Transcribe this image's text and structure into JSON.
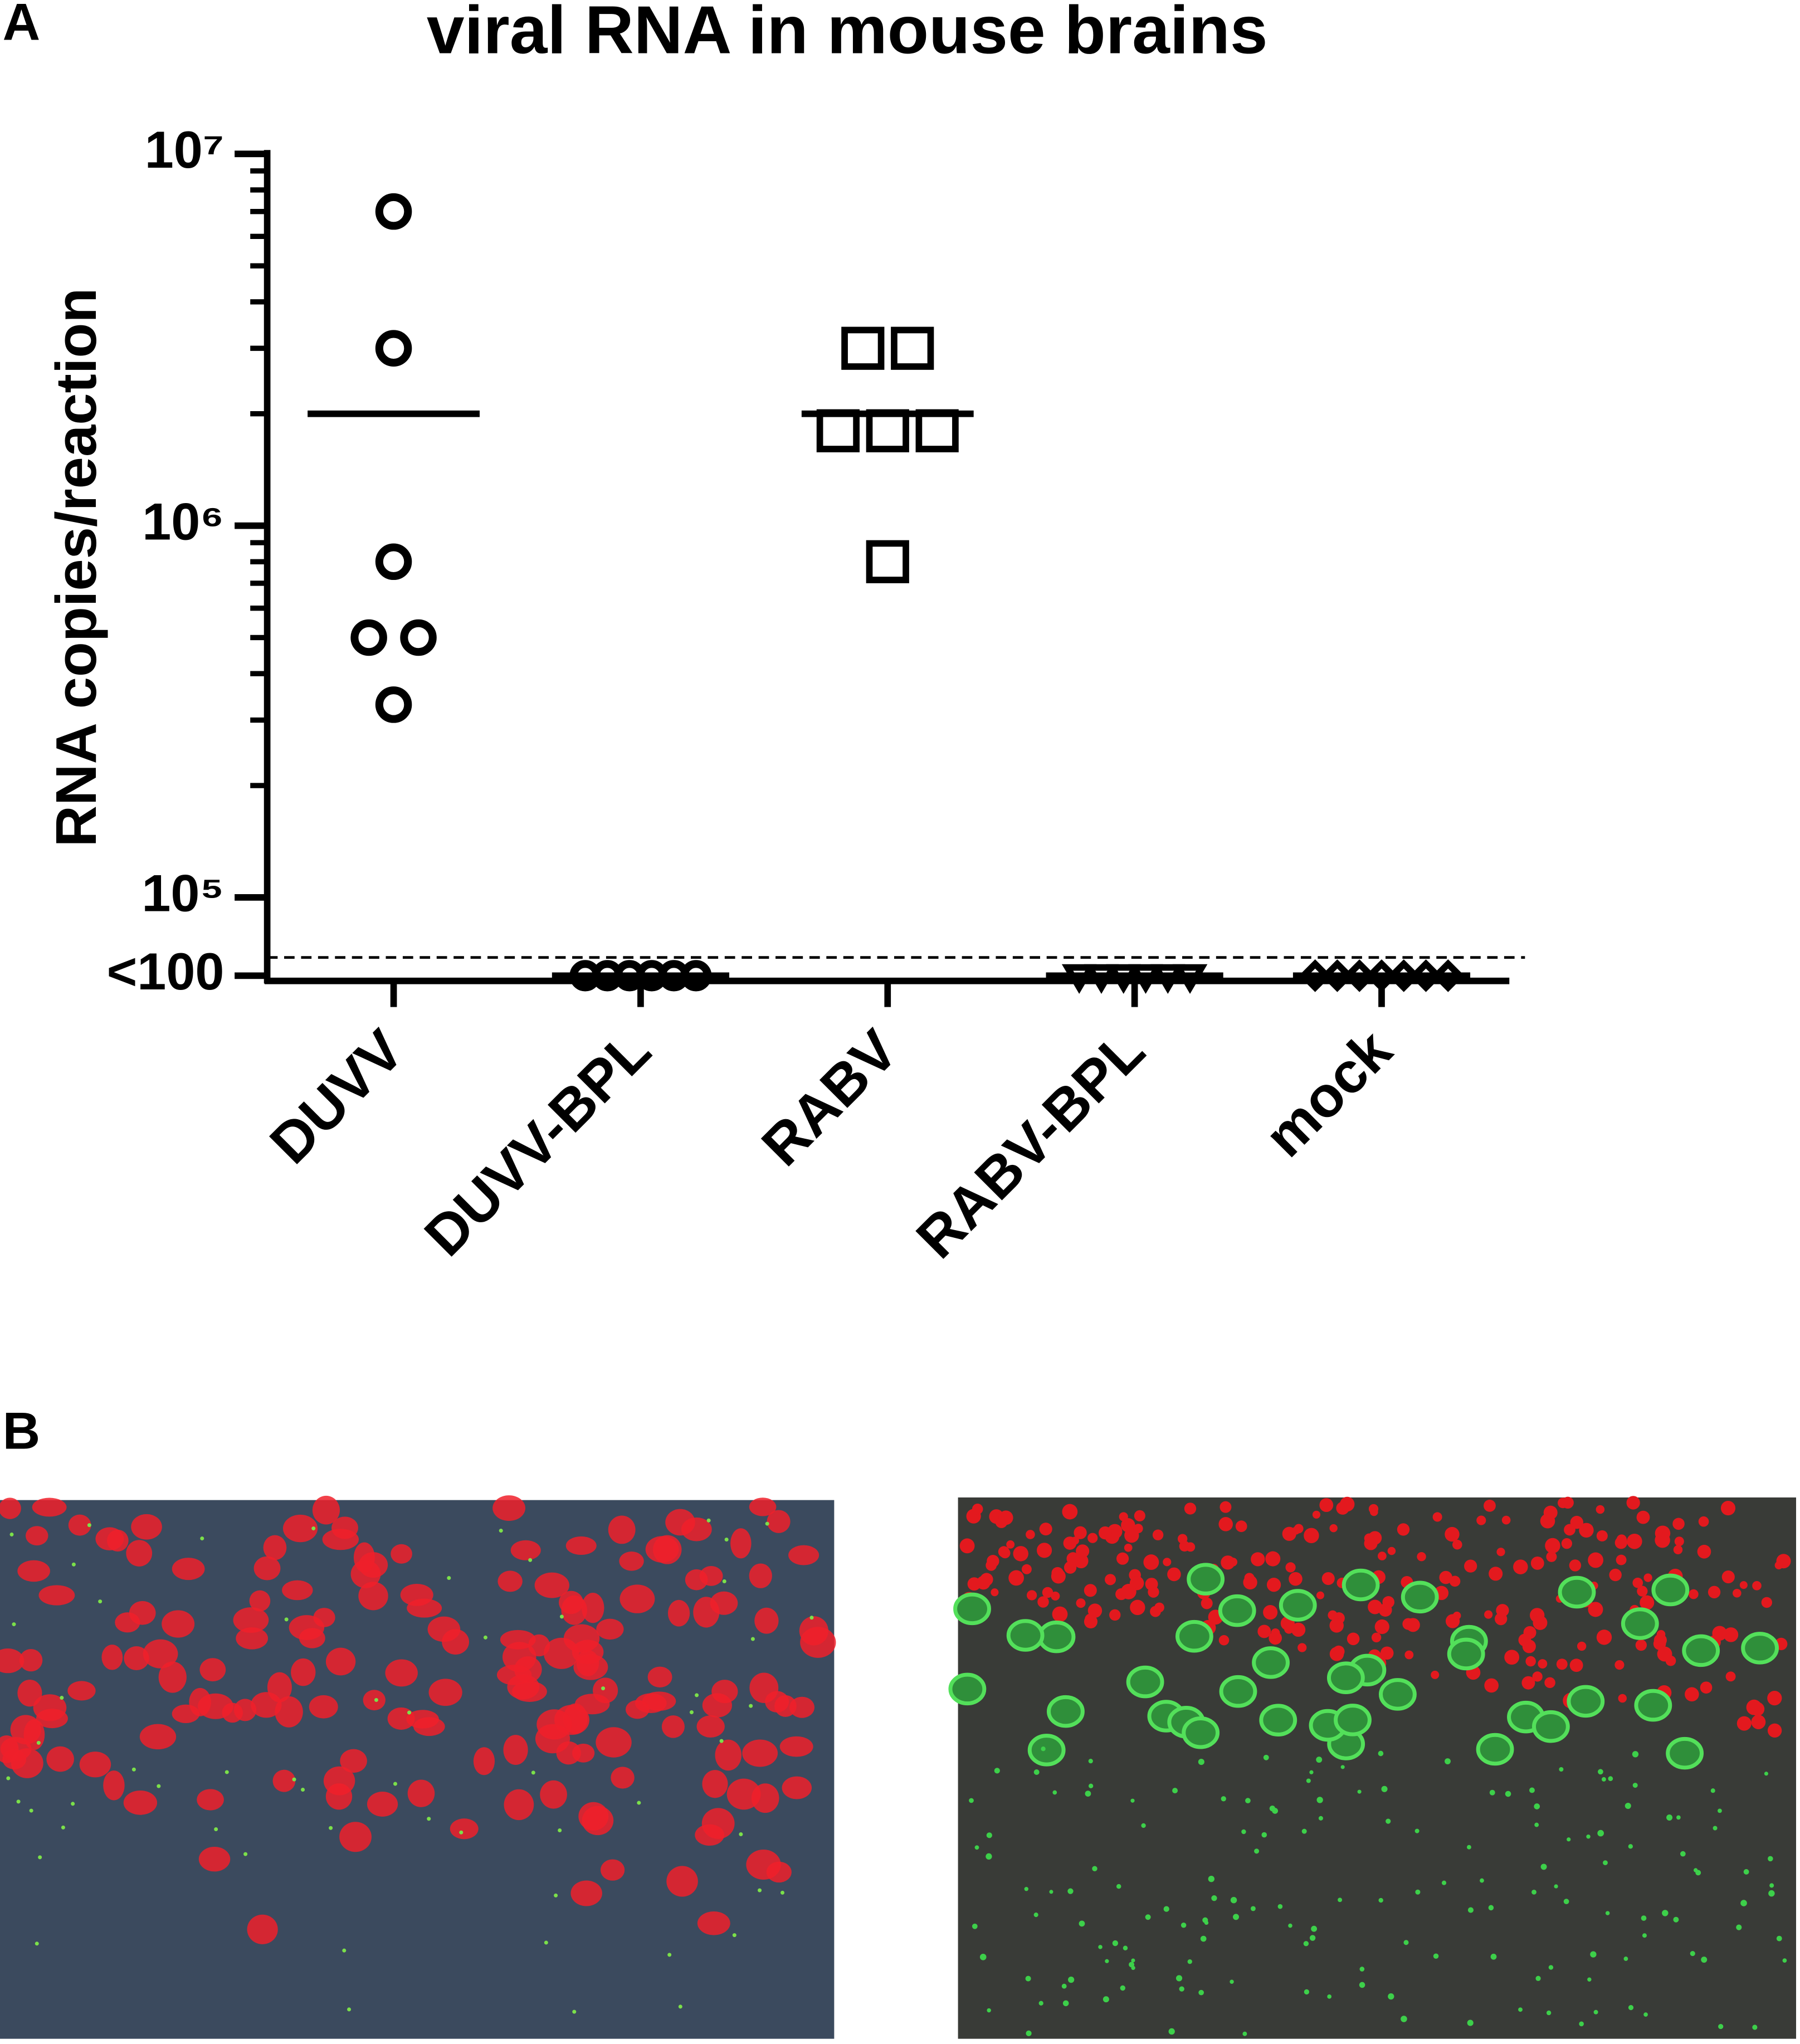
{
  "panel_labels": [
    "A",
    "B"
  ],
  "chart_data": {
    "type": "dot",
    "title": "viral RNA in mouse brains",
    "y_label": "RNA copies/reaction",
    "yscale": "log",
    "categories": [
      "DUVV",
      "DUVV-BPL",
      "RABV",
      "RABV-BPL",
      "mock"
    ],
    "markers": [
      "circle",
      "circle",
      "square",
      "triangle-down",
      "diamond"
    ],
    "values": [
      [
        7000000,
        3000000,
        800000,
        500000,
        500000,
        330000
      ],
      [
        100,
        100,
        100,
        100,
        100,
        100
      ],
      [
        3000000,
        3000000,
        1800000,
        1800000,
        1800000,
        800000
      ],
      [
        100,
        100,
        100,
        100,
        100,
        100
      ],
      [
        100,
        100,
        100,
        100,
        100,
        100,
        100
      ]
    ],
    "means": [
      2000000,
      100,
      2000000,
      100,
      100
    ],
    "color": "#000000",
    "ylim": [
      100,
      10000000
    ],
    "yticks": [
      {
        "value": 100,
        "label": "<100"
      },
      {
        "value": 100000,
        "label": "10⁵"
      },
      {
        "value": 1000000,
        "label": "10⁶"
      },
      {
        "value": 10000000,
        "label": "10⁷"
      }
    ],
    "yminor_ticks": [
      200000,
      300000,
      400000,
      500000,
      600000,
      700000,
      800000,
      900000,
      2000000,
      3000000,
      4000000,
      5000000,
      6000000,
      7000000,
      8000000,
      9000000
    ]
  }
}
